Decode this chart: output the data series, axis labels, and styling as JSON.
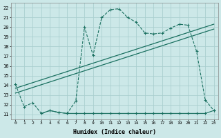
{
  "xlabel": "Humidex (Indice chaleur)",
  "bg_color": "#cce8e8",
  "grid_color": "#aacfcf",
  "line_color": "#1a7060",
  "xlim": [
    -0.5,
    23.5
  ],
  "ylim": [
    10.5,
    22.5
  ],
  "xticks": [
    0,
    1,
    2,
    3,
    4,
    5,
    6,
    7,
    8,
    9,
    10,
    11,
    12,
    13,
    14,
    15,
    16,
    17,
    18,
    19,
    20,
    21,
    22,
    23
  ],
  "yticks": [
    11,
    12,
    13,
    14,
    15,
    16,
    17,
    18,
    19,
    20,
    21,
    22
  ],
  "curve_x": [
    0,
    1,
    2,
    3,
    4,
    5,
    6,
    7,
    8,
    9,
    10,
    11,
    12,
    13,
    14,
    15,
    16,
    17,
    18,
    19,
    20,
    21,
    22,
    23
  ],
  "curve_y": [
    14.1,
    11.8,
    12.2,
    11.1,
    11.4,
    11.2,
    11.1,
    12.4,
    20.0,
    17.1,
    21.0,
    21.8,
    21.9,
    21.0,
    20.5,
    19.4,
    19.3,
    19.4,
    19.9,
    20.3,
    20.2,
    17.5,
    12.5,
    11.4
  ],
  "flat_x": [
    3,
    4,
    5,
    6,
    7,
    8,
    9,
    10,
    11,
    12,
    13,
    14,
    15,
    16,
    17,
    18,
    19,
    20,
    21,
    22,
    23
  ],
  "flat_y": [
    11.1,
    11.4,
    11.2,
    11.1,
    11.1,
    11.1,
    11.1,
    11.1,
    11.1,
    11.1,
    11.1,
    11.1,
    11.1,
    11.1,
    11.1,
    11.1,
    11.1,
    11.1,
    11.1,
    11.1,
    11.4
  ],
  "trend1_x": [
    0,
    23
  ],
  "trend1_y": [
    13.7,
    20.3
  ],
  "trend2_x": [
    0,
    23
  ],
  "trend2_y": [
    13.2,
    19.8
  ]
}
